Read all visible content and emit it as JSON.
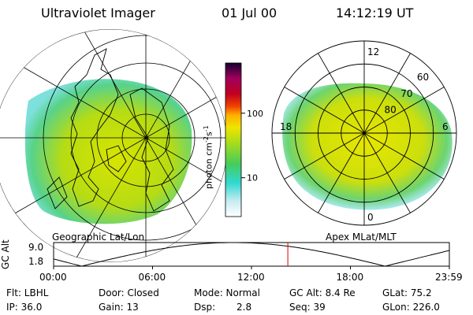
{
  "header": {
    "title": "Ultraviolet Imager",
    "date": "01 Jul 00",
    "time": "14:12:19 UT"
  },
  "colorbar": {
    "ticks": [
      {
        "value": 100,
        "label": "100"
      },
      {
        "value": 10,
        "label": "10"
      }
    ],
    "range": [
      2.5,
      600
    ],
    "scale": "log",
    "unit_main": "photon cm",
    "unit_sup1": "-2",
    "unit_mid": "s",
    "unit_sup2": "-1"
  },
  "left_panel": {
    "caption": "Geographic Lat/Lon"
  },
  "right_panel": {
    "caption": "Apex MLat/MLT",
    "mlt_labels": [
      {
        "text": "12",
        "mlt": 12
      },
      {
        "text": "18",
        "mlt": 18
      },
      {
        "text": "6",
        "mlt": 6
      },
      {
        "text": "0",
        "mlt": 0
      }
    ],
    "lat_labels": [
      {
        "text": "60",
        "lat": 60
      },
      {
        "text": "70",
        "lat": 70
      },
      {
        "text": "80",
        "lat": 80
      }
    ]
  },
  "altitude_plot": {
    "ylabel": "GC Alt",
    "yticks": [
      "9.0",
      "1.8"
    ],
    "ylim": [
      1.8,
      9.0
    ],
    "xticks": [
      "00:00",
      "06:00",
      "12:00",
      "18:00",
      "23:59"
    ],
    "current_time_hours": 14.205
  },
  "info": {
    "flt": "Flt: LBHL",
    "ip": "IP: 36.0",
    "door": "Door: Closed",
    "gain": "Gain: 13",
    "mode": "Mode: Normal",
    "dsp_label": "Dsp:",
    "dsp_value": "2.8",
    "gcalt": "GC Alt: 8.4 Re",
    "seq": "Seq: 39",
    "glat": "GLat:  75.2",
    "glon": "GLon: 226.0"
  },
  "colors": {
    "line": "#000000",
    "current_time_marker": "#e00000"
  }
}
